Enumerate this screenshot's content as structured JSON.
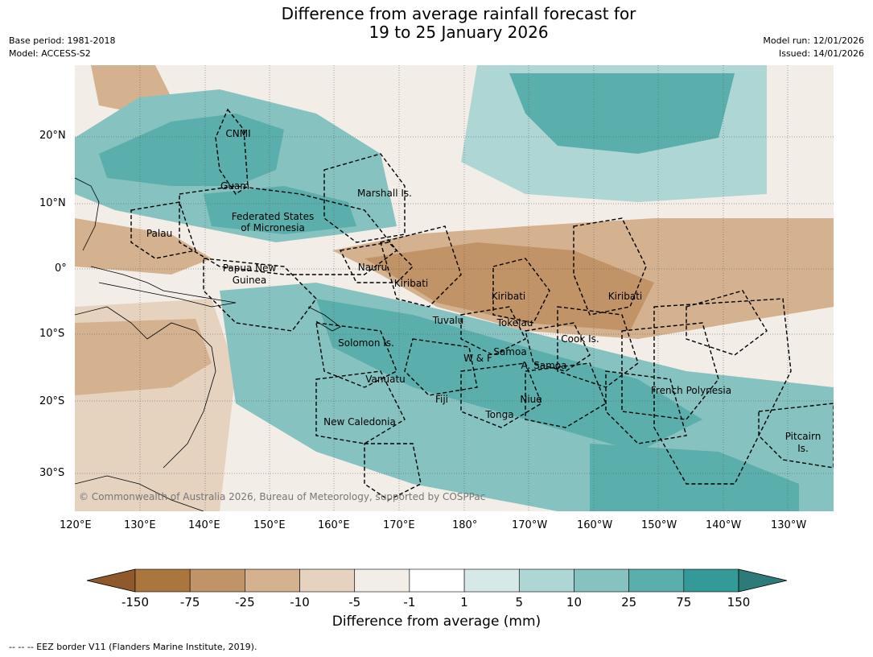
{
  "title_line1": "Difference from average rainfall forecast for",
  "title_line2": "19 to 25 January 2026",
  "base_period": "Base period: 1981-2018",
  "model": "Model: ACCESS-S2",
  "model_run": "Model run: 12/01/2026",
  "issued": "Issued: 14/01/2026",
  "lat_ticks": [
    "20°N",
    "10°N",
    "0°",
    "10°S",
    "20°S",
    "30°S"
  ],
  "lon_ticks": [
    "120°E",
    "130°E",
    "140°E",
    "150°E",
    "160°E",
    "170°E",
    "180°",
    "170°W",
    "160°W",
    "150°W",
    "140°W",
    "130°W"
  ],
  "regions": [
    "CNMI",
    "Guam",
    "Marshall Is.",
    "Federated States",
    "of Micronesia",
    "Palau",
    "Papua New",
    "Guinea",
    "Nauru",
    "Kiribati",
    "Kiribati",
    "Kiribati",
    "Tuvalu",
    "Tokelau",
    "Cook Is.",
    "Solomon Is.",
    "W & F",
    "Samoa",
    "A. Samoa",
    "Vanuatu",
    "Fiji",
    "Niue",
    "Tonga",
    "French Polynesia",
    "New Caledonia",
    "Pitcairn",
    "Is."
  ],
  "copyright": "© Commonwealth of Australia 2026, Bureau of Meteorology, supported by COSPPac",
  "colorbar": {
    "labels": [
      "-150",
      "-75",
      "-25",
      "-10",
      "-5",
      "-1",
      "1",
      "5",
      "10",
      "25",
      "75",
      "150"
    ],
    "colors": [
      "#8f5a2b",
      "#ab753e",
      "#c09467",
      "#d4b290",
      "#e5d2bf",
      "#f2ede6",
      "#ffffff",
      "#d5e9e8",
      "#aed6d4",
      "#85c2c0",
      "#5aaeab",
      "#349a97",
      "#2c7b78"
    ],
    "title": "Difference from average (mm)"
  },
  "footer": "--  --  -- EEZ border V11 (Flanders Marine Institute, 2019)."
}
